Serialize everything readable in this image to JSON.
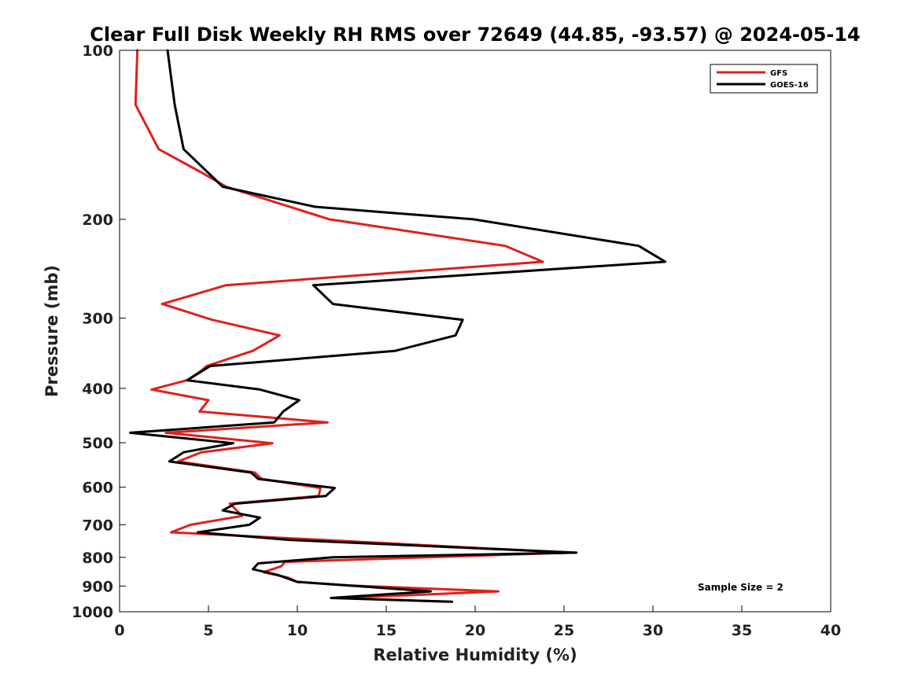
{
  "chart_data": {
    "type": "line",
    "title": "Clear Full Disk Weekly RH RMS over 72649 (44.85, -93.57) @ 2024-05-14",
    "xlabel": "Relative Humidity (%)",
    "ylabel": "Pressure (mb)",
    "xlim": [
      0,
      40
    ],
    "ylim": [
      100,
      1000
    ],
    "y_scale": "log",
    "y_reversed": true,
    "xticks": [
      0,
      5,
      10,
      15,
      20,
      25,
      30,
      35,
      40
    ],
    "yticks": [
      100,
      200,
      300,
      400,
      500,
      600,
      700,
      800,
      900,
      1000
    ],
    "grid": false,
    "legend_position": "top-right",
    "annotation": "Sample Size = 2",
    "series": [
      {
        "name": "GFS",
        "color": "#e0201b",
        "points": [
          [
            1.0,
            100
          ],
          [
            0.9,
            125
          ],
          [
            2.2,
            150
          ],
          [
            4.6,
            165
          ],
          [
            6.0,
            175
          ],
          [
            11.8,
            200
          ],
          [
            21.7,
            223
          ],
          [
            23.8,
            238
          ],
          [
            6.0,
            262
          ],
          [
            2.4,
            283
          ],
          [
            5.2,
            302
          ],
          [
            9.0,
            322
          ],
          [
            7.5,
            343
          ],
          [
            4.9,
            365
          ],
          [
            4.6,
            372
          ],
          [
            3.8,
            387
          ],
          [
            1.8,
            402
          ],
          [
            5.0,
            420
          ],
          [
            4.5,
            440
          ],
          [
            11.7,
            460
          ],
          [
            2.6,
            480
          ],
          [
            8.6,
            501
          ],
          [
            4.6,
            520
          ],
          [
            3.3,
            540
          ],
          [
            7.6,
            565
          ],
          [
            8.0,
            580
          ],
          [
            11.3,
            602
          ],
          [
            11.2,
            622
          ],
          [
            6.2,
            642
          ],
          [
            6.9,
            675
          ],
          [
            4.0,
            700
          ],
          [
            2.9,
            722
          ],
          [
            11.5,
            745
          ],
          [
            25.3,
            785
          ],
          [
            9.3,
            815
          ],
          [
            9.1,
            830
          ],
          [
            8.1,
            850
          ],
          [
            9.5,
            870
          ],
          [
            10.0,
            885
          ],
          [
            12.9,
            898
          ],
          [
            21.3,
            920
          ],
          [
            16.0,
            935
          ],
          [
            12.2,
            945
          ],
          [
            18.5,
            960
          ]
        ]
      },
      {
        "name": "GOES-16",
        "color": "#000000",
        "points": [
          [
            2.7,
            100
          ],
          [
            3.1,
            125
          ],
          [
            3.6,
            150
          ],
          [
            5.8,
            175
          ],
          [
            11.0,
            190
          ],
          [
            19.9,
            200
          ],
          [
            29.2,
            223
          ],
          [
            30.7,
            238
          ],
          [
            10.9,
            262
          ],
          [
            12.0,
            283
          ],
          [
            19.3,
            302
          ],
          [
            18.9,
            322
          ],
          [
            15.5,
            343
          ],
          [
            5.1,
            365
          ],
          [
            3.8,
            387
          ],
          [
            7.9,
            402
          ],
          [
            10.1,
            420
          ],
          [
            9.2,
            440
          ],
          [
            8.7,
            460
          ],
          [
            0.6,
            480
          ],
          [
            6.4,
            501
          ],
          [
            3.6,
            520
          ],
          [
            2.8,
            540
          ],
          [
            7.4,
            565
          ],
          [
            7.8,
            580
          ],
          [
            12.1,
            602
          ],
          [
            11.6,
            622
          ],
          [
            6.5,
            642
          ],
          [
            5.8,
            660
          ],
          [
            7.9,
            680
          ],
          [
            7.3,
            700
          ],
          [
            4.4,
            722
          ],
          [
            9.6,
            745
          ],
          [
            25.7,
            785
          ],
          [
            12.0,
            800
          ],
          [
            7.8,
            820
          ],
          [
            7.5,
            840
          ],
          [
            8.9,
            860
          ],
          [
            10.0,
            885
          ],
          [
            12.9,
            898
          ],
          [
            17.5,
            920
          ],
          [
            11.9,
            945
          ],
          [
            18.7,
            960
          ]
        ]
      }
    ]
  }
}
